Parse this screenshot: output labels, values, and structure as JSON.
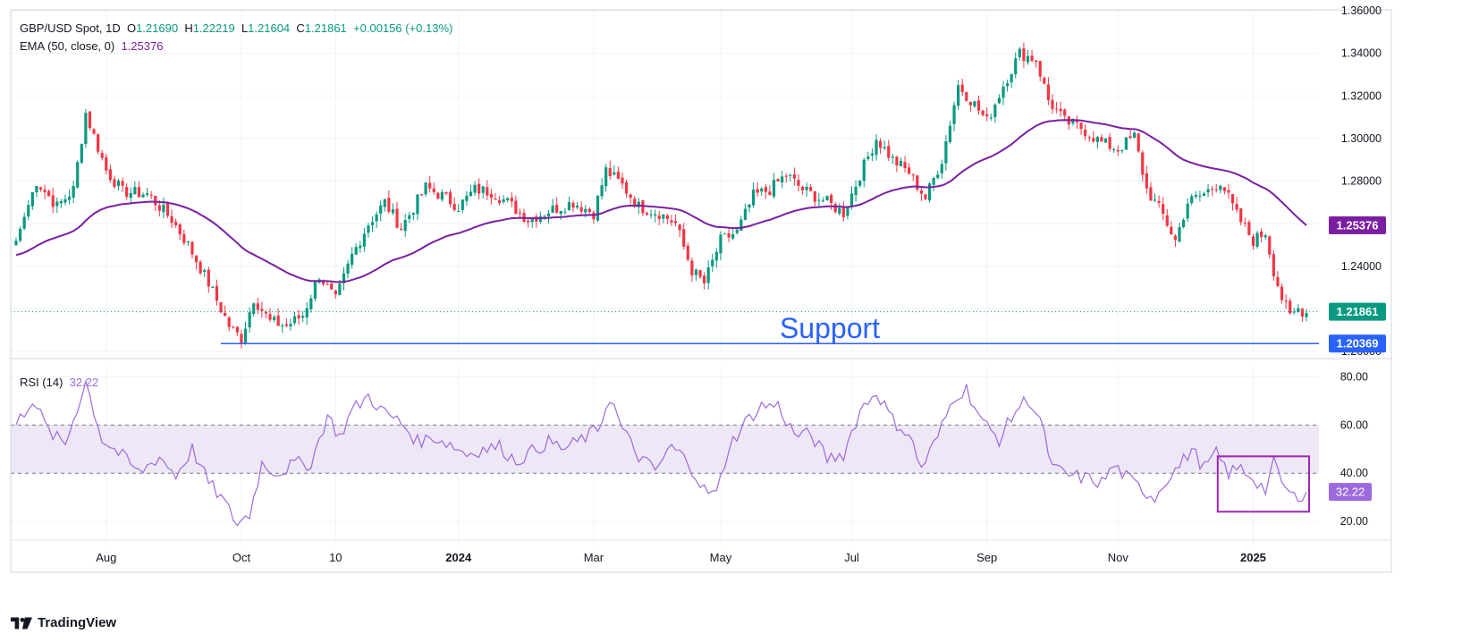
{
  "header": {
    "symbol": "GBP/USD Spot, 1D",
    "open_label": "O",
    "open": "1.21690",
    "high_label": "H",
    "high": "1.22219",
    "low_label": "L",
    "low": "1.21604",
    "close_label": "C",
    "close": "1.21861",
    "change": "+0.00156 (+0.13%)",
    "ema_label": "EMA (50, close, 0)",
    "ema_value": "1.25376",
    "rsi_label": "RSI (14)",
    "rsi_value": "32.22"
  },
  "brand": {
    "name": "TradingView"
  },
  "colors": {
    "up": "#089981",
    "down": "#f23645",
    "ema": "#7b1fa2",
    "rsi": "#9c6ade",
    "support": "#2962ff",
    "rsi_box": "#9c27b0",
    "rsi_band": "#ede7f6"
  },
  "chart_data": {
    "type": "candlestick",
    "price_axis": {
      "range": [
        1.2,
        1.36
      ],
      "ticks": [
        "1.36000",
        "1.34000",
        "1.32000",
        "1.30000",
        "1.28000",
        "1.26000",
        "1.24000",
        "1.22000",
        "1.20000"
      ]
    },
    "rsi_axis": {
      "range": [
        10,
        85
      ],
      "ticks": [
        "80.00",
        "60.00",
        "40.00",
        "20.00"
      ],
      "band": [
        40,
        60
      ]
    },
    "x_ticks": [
      {
        "label": "Aug",
        "bold": false
      },
      {
        "label": "Oct",
        "bold": false
      },
      {
        "label": "10",
        "bold": false
      },
      {
        "label": "2024",
        "bold": true
      },
      {
        "label": "Mar",
        "bold": false
      },
      {
        "label": "May",
        "bold": false
      },
      {
        "label": "Jul",
        "bold": false
      },
      {
        "label": "Sep",
        "bold": false
      },
      {
        "label": "Nov",
        "bold": false
      },
      {
        "label": "2025",
        "bold": true
      }
    ],
    "x_tick_index": [
      22,
      55,
      78,
      108,
      141,
      172,
      204,
      237,
      269,
      302
    ],
    "close_keypoints": [
      [
        0,
        1.252
      ],
      [
        5,
        1.28
      ],
      [
        10,
        1.268
      ],
      [
        14,
        1.276
      ],
      [
        17,
        1.312
      ],
      [
        22,
        1.285
      ],
      [
        26,
        1.275
      ],
      [
        32,
        1.274
      ],
      [
        38,
        1.262
      ],
      [
        42,
        1.25
      ],
      [
        47,
        1.232
      ],
      [
        52,
        1.212
      ],
      [
        55,
        1.206
      ],
      [
        58,
        1.225
      ],
      [
        62,
        1.214
      ],
      [
        66,
        1.212
      ],
      [
        70,
        1.217
      ],
      [
        74,
        1.236
      ],
      [
        78,
        1.224
      ],
      [
        82,
        1.245
      ],
      [
        86,
        1.26
      ],
      [
        90,
        1.27
      ],
      [
        94,
        1.258
      ],
      [
        100,
        1.277
      ],
      [
        104,
        1.273
      ],
      [
        108,
        1.268
      ],
      [
        112,
        1.276
      ],
      [
        116,
        1.275
      ],
      [
        120,
        1.27
      ],
      [
        125,
        1.262
      ],
      [
        130,
        1.266
      ],
      [
        136,
        1.27
      ],
      [
        141,
        1.265
      ],
      [
        144,
        1.285
      ],
      [
        148,
        1.278
      ],
      [
        152,
        1.268
      ],
      [
        157,
        1.265
      ],
      [
        161,
        1.26
      ],
      [
        165,
        1.238
      ],
      [
        168,
        1.232
      ],
      [
        172,
        1.252
      ],
      [
        176,
        1.256
      ],
      [
        180,
        1.273
      ],
      [
        184,
        1.276
      ],
      [
        188,
        1.283
      ],
      [
        192,
        1.276
      ],
      [
        198,
        1.27
      ],
      [
        202,
        1.265
      ],
      [
        206,
        1.283
      ],
      [
        210,
        1.3
      ],
      [
        214,
        1.29
      ],
      [
        218,
        1.284
      ],
      [
        222,
        1.272
      ],
      [
        226,
        1.29
      ],
      [
        230,
        1.325
      ],
      [
        234,
        1.316
      ],
      [
        237,
        1.308
      ],
      [
        241,
        1.325
      ],
      [
        245,
        1.34
      ],
      [
        249,
        1.337
      ],
      [
        252,
        1.318
      ],
      [
        256,
        1.308
      ],
      [
        260,
        1.305
      ],
      [
        265,
        1.298
      ],
      [
        269,
        1.295
      ],
      [
        273,
        1.301
      ],
      [
        276,
        1.276
      ],
      [
        280,
        1.264
      ],
      [
        283,
        1.252
      ],
      [
        286,
        1.27
      ],
      [
        290,
        1.274
      ],
      [
        294,
        1.28
      ],
      [
        298,
        1.264
      ],
      [
        302,
        1.252
      ],
      [
        305,
        1.256
      ],
      [
        307,
        1.238
      ],
      [
        309,
        1.225
      ],
      [
        311,
        1.216
      ],
      [
        313,
        1.22
      ],
      [
        315,
        1.218
      ]
    ],
    "ema_last": "1.25376",
    "last_price": "1.21861",
    "support": {
      "label": "Support",
      "value": "1.20369",
      "level": 1.20369,
      "start_index": 50
    },
    "rsi_keypoints": [
      [
        0,
        60
      ],
      [
        4,
        71
      ],
      [
        8,
        57
      ],
      [
        12,
        52
      ],
      [
        17,
        78
      ],
      [
        21,
        54
      ],
      [
        26,
        47
      ],
      [
        30,
        40
      ],
      [
        35,
        47
      ],
      [
        39,
        39
      ],
      [
        43,
        50
      ],
      [
        47,
        36
      ],
      [
        50,
        30
      ],
      [
        54,
        19
      ],
      [
        57,
        23
      ],
      [
        60,
        44
      ],
      [
        64,
        40
      ],
      [
        68,
        44
      ],
      [
        72,
        44
      ],
      [
        76,
        64
      ],
      [
        79,
        55
      ],
      [
        82,
        66
      ],
      [
        86,
        72
      ],
      [
        90,
        65
      ],
      [
        94,
        61
      ],
      [
        98,
        53
      ],
      [
        102,
        55
      ],
      [
        106,
        52
      ],
      [
        110,
        48
      ],
      [
        114,
        50
      ],
      [
        118,
        51
      ],
      [
        122,
        45
      ],
      [
        126,
        49
      ],
      [
        130,
        53
      ],
      [
        134,
        50
      ],
      [
        138,
        54
      ],
      [
        142,
        58
      ],
      [
        145,
        72
      ],
      [
        148,
        58
      ],
      [
        152,
        47
      ],
      [
        156,
        41
      ],
      [
        160,
        51
      ],
      [
        164,
        45
      ],
      [
        168,
        33
      ],
      [
        171,
        31
      ],
      [
        174,
        51
      ],
      [
        178,
        61
      ],
      [
        182,
        68
      ],
      [
        186,
        68
      ],
      [
        190,
        56
      ],
      [
        194,
        56
      ],
      [
        198,
        46
      ],
      [
        202,
        48
      ],
      [
        206,
        66
      ],
      [
        210,
        74
      ],
      [
        214,
        62
      ],
      [
        218,
        56
      ],
      [
        221,
        42
      ],
      [
        225,
        55
      ],
      [
        229,
        72
      ],
      [
        232,
        75
      ],
      [
        236,
        61
      ],
      [
        240,
        54
      ],
      [
        244,
        66
      ],
      [
        247,
        71
      ],
      [
        250,
        62
      ],
      [
        253,
        42
      ],
      [
        257,
        39
      ],
      [
        261,
        38
      ],
      [
        265,
        36
      ],
      [
        268,
        43
      ],
      [
        272,
        37
      ],
      [
        275,
        33
      ],
      [
        278,
        30
      ],
      [
        281,
        38
      ],
      [
        284,
        43
      ],
      [
        287,
        50
      ],
      [
        290,
        42
      ],
      [
        293,
        48
      ],
      [
        296,
        40
      ],
      [
        299,
        42
      ],
      [
        302,
        38
      ],
      [
        305,
        33
      ],
      [
        307,
        44
      ],
      [
        310,
        33
      ],
      [
        312,
        30
      ],
      [
        315,
        32.22
      ]
    ],
    "rsi_box": {
      "from_index": 294,
      "to_index": 315,
      "low": 24,
      "high": 47
    },
    "total_bars": 316
  }
}
